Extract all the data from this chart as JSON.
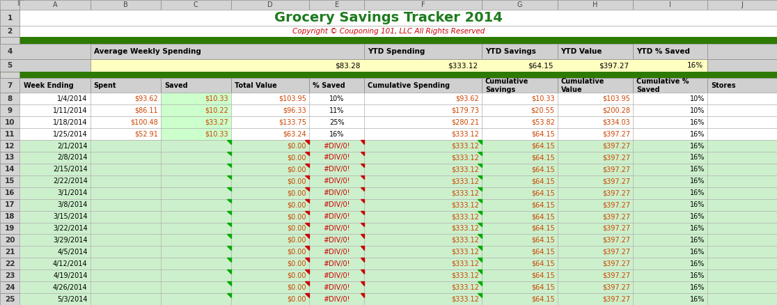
{
  "title": "Grocery Savings Tracker 2014",
  "subtitle": "Copyright © Couponing 101, LLC All Rights Reserved",
  "title_color": "#1e7b1e",
  "subtitle_color": "#cc0000",
  "green_bar_color": "#2d7a00",
  "light_green_bg": "#ccf0cc",
  "white_bg": "#ffffff",
  "yellow_bg": "#ffffc0",
  "header_bg": "#c8c8c8",
  "col_letters": [
    "◤",
    "A",
    "B",
    "C",
    "D",
    "E",
    "F",
    "G",
    "H",
    "I",
    "J"
  ],
  "row4_labels": [
    "",
    "",
    "Average Weekly Spending",
    "",
    "",
    "YTD Spending",
    "YTD Savings",
    "YTD Value",
    "YTD % Saved",
    "",
    ""
  ],
  "row5_values": [
    "",
    "",
    "$83.28",
    "",
    "",
    "$333.12",
    "$64.15",
    "$397.27",
    "16%",
    "",
    ""
  ],
  "row7_headers": [
    "",
    "Week Ending",
    "Spent",
    "Saved",
    "Total Value",
    "% Saved",
    "Cumulative Spending",
    "Cumulative\nSavings",
    "Cumulative\nValue",
    "Cumulative %\nSaved",
    "Stores"
  ],
  "rows": [
    [
      8,
      "1/4/2014",
      "$93.62",
      "$10.33",
      "$103.95",
      "10%",
      "$93.62",
      "$10.33",
      "$103.95",
      "10%",
      ""
    ],
    [
      9,
      "1/11/2014",
      "$86.11",
      "$10.22",
      "$96.33",
      "11%",
      "$179.73",
      "$20.55",
      "$200.28",
      "10%",
      ""
    ],
    [
      10,
      "1/18/2014",
      "$100.48",
      "$33.27",
      "$133.75",
      "25%",
      "$280.21",
      "$53.82",
      "$334.03",
      "16%",
      ""
    ],
    [
      11,
      "1/25/2014",
      "$52.91",
      "$10.33",
      "$63.24",
      "16%",
      "$333.12",
      "$64.15",
      "$397.27",
      "16%",
      ""
    ],
    [
      12,
      "2/1/2014",
      "",
      "",
      "$0.00",
      "#DIV/0!",
      "$333.12",
      "$64.15",
      "$397.27",
      "16%",
      ""
    ],
    [
      13,
      "2/8/2014",
      "",
      "",
      "$0.00",
      "#DIV/0!",
      "$333.12",
      "$64.15",
      "$397.27",
      "16%",
      ""
    ],
    [
      14,
      "2/15/2014",
      "",
      "",
      "$0.00",
      "#DIV/0!",
      "$333.12",
      "$64.15",
      "$397.27",
      "16%",
      ""
    ],
    [
      15,
      "2/22/2014",
      "",
      "",
      "$0.00",
      "#DIV/0!",
      "$333.12",
      "$64.15",
      "$397.27",
      "16%",
      ""
    ],
    [
      16,
      "3/1/2014",
      "",
      "",
      "$0.00",
      "#DIV/0!",
      "$333.12",
      "$64.15",
      "$397.27",
      "16%",
      ""
    ],
    [
      17,
      "3/8/2014",
      "",
      "",
      "$0.00",
      "#DIV/0!",
      "$333.12",
      "$64.15",
      "$397.27",
      "16%",
      ""
    ],
    [
      18,
      "3/15/2014",
      "",
      "",
      "$0.00",
      "#DIV/0!",
      "$333.12",
      "$64.15",
      "$397.27",
      "16%",
      ""
    ],
    [
      19,
      "3/22/2014",
      "",
      "",
      "$0.00",
      "#DIV/0!",
      "$333.12",
      "$64.15",
      "$397.27",
      "16%",
      ""
    ],
    [
      20,
      "3/29/2014",
      "",
      "",
      "$0.00",
      "#DIV/0!",
      "$333.12",
      "$64.15",
      "$397.27",
      "16%",
      ""
    ],
    [
      21,
      "4/5/2014",
      "",
      "",
      "$0.00",
      "#DIV/0!",
      "$333.12",
      "$64.15",
      "$397.27",
      "16%",
      ""
    ],
    [
      22,
      "4/12/2014",
      "",
      "",
      "$0.00",
      "#DIV/0!",
      "$333.12",
      "$64.15",
      "$397.27",
      "16%",
      ""
    ],
    [
      23,
      "4/19/2014",
      "",
      "",
      "$0.00",
      "#DIV/0!",
      "$333.12",
      "$64.15",
      "$397.27",
      "16%",
      ""
    ],
    [
      24,
      "4/26/2014",
      "",
      "",
      "$0.00",
      "#DIV/0!",
      "$333.12",
      "$64.15",
      "$397.27",
      "16%",
      ""
    ],
    [
      25,
      "5/3/2014",
      "",
      "",
      "$0.00",
      "#DIV/0!",
      "$333.12",
      "$64.15",
      "$397.27",
      "16%",
      ""
    ]
  ]
}
